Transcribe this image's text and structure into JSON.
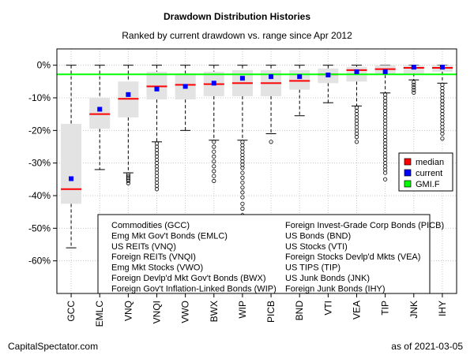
{
  "chart_data": {
    "type": "boxplot",
    "title": "Drawdown Distribution Histories",
    "subtitle": "Ranked by current drawdown vs. range since Apr 2012",
    "ylim": [
      -70,
      5
    ],
    "yticks": [
      0,
      -10,
      -20,
      -30,
      -40,
      -50,
      -60
    ],
    "ytick_labels": [
      "0%",
      "-10%",
      "-20%",
      "-30%",
      "-40%",
      "-50%",
      "-60%"
    ],
    "grid": true,
    "reference_line": {
      "name": "GMI.F",
      "value": -2.8
    },
    "legend": {
      "position": "right",
      "entries": [
        {
          "label": "median",
          "color": "#ff0000"
        },
        {
          "label": "current",
          "color": "#0000ff"
        },
        {
          "label": "GMI.F",
          "color": "#00ff00"
        }
      ]
    },
    "categories": [
      "GCC",
      "EMLC",
      "VNQ",
      "VNQI",
      "VWO",
      "BWX",
      "WIP",
      "PICB",
      "BND",
      "VTI",
      "VEA",
      "TIP",
      "JNK",
      "IHY"
    ],
    "boxes": [
      {
        "q1": -42.5,
        "q3": -18.0,
        "median": -38.0,
        "whisker_low": -56.0,
        "whisker_high": 0.0,
        "current": -34.8,
        "outliers": []
      },
      {
        "q1": -19.5,
        "q3": -10.0,
        "median": -15.0,
        "whisker_low": -32.0,
        "whisker_high": 0.0,
        "current": -13.5,
        "outliers": []
      },
      {
        "q1": -16.0,
        "q3": -5.0,
        "median": -10.3,
        "whisker_low": -33.0,
        "whisker_high": 0.0,
        "current": -9.0,
        "outliers": [
          -33.5,
          -34.0,
          -34.5,
          -35.0,
          -35.5,
          -36.2
        ]
      },
      {
        "q1": -10.5,
        "q3": -2.0,
        "median": -6.5,
        "whisker_low": -23.5,
        "whisker_high": 0.0,
        "current": -7.3,
        "outliers": [
          -24,
          -25,
          -26,
          -27,
          -28,
          -29,
          -30,
          -31,
          -32,
          -33,
          -34,
          -35,
          -36,
          -37,
          -38
        ]
      },
      {
        "q1": -10.5,
        "q3": -2.5,
        "median": -6.0,
        "whisker_low": -20.0,
        "whisker_high": 0.0,
        "current": -6.5,
        "outliers": []
      },
      {
        "q1": -9.5,
        "q3": -2.0,
        "median": -5.8,
        "whisker_low": -23.0,
        "whisker_high": 0.0,
        "current": -5.5,
        "outliers": [
          -23.5,
          -25,
          -26.5,
          -28,
          -29.5,
          -31,
          -32.5,
          -34,
          -35.5
        ]
      },
      {
        "q1": -9.5,
        "q3": -1.5,
        "median": -5.5,
        "whisker_low": -23.0,
        "whisker_high": 0.0,
        "current": -4.0,
        "outliers": [
          -23.5,
          -24.5,
          -25.5,
          -26.5,
          -27.5,
          -28.5,
          -29.5,
          -30.5,
          -31.5,
          -33,
          -34.5,
          -36,
          -37.5,
          -39,
          -40.5,
          -42.5,
          -44,
          -46
        ]
      },
      {
        "q1": -9.5,
        "q3": -1.5,
        "median": -5.5,
        "whisker_low": -21.0,
        "whisker_high": 0.0,
        "current": -3.5,
        "outliers": [
          -23.5
        ]
      },
      {
        "q1": -7.5,
        "q3": -1.5,
        "median": -4.8,
        "whisker_low": -15.5,
        "whisker_high": 0.0,
        "current": -3.5,
        "outliers": []
      },
      {
        "q1": -5.5,
        "q3": -1.0,
        "median": -2.8,
        "whisker_low": -11.5,
        "whisker_high": 0.0,
        "current": -3.0,
        "outliers": []
      },
      {
        "q1": -5.0,
        "q3": -0.5,
        "median": -1.5,
        "whisker_low": -12.5,
        "whisker_high": 0.0,
        "current": -2.0,
        "outliers": [
          -13,
          -14,
          -15,
          -16,
          -17,
          -18,
          -19,
          -20,
          -21,
          -22,
          -23.5
        ]
      },
      {
        "q1": -3.0,
        "q3": 0.0,
        "median": -1.2,
        "whisker_low": -8.5,
        "whisker_high": 0.0,
        "current": -2.0,
        "outliers": [
          -9,
          -10,
          -11,
          -12,
          -13,
          -14,
          -15,
          -16,
          -17,
          -18,
          -19,
          -20,
          -21,
          -22,
          -23,
          -24,
          -25,
          -26,
          -27,
          -28,
          -29,
          -30,
          -31,
          -32,
          -33,
          -35
        ]
      },
      {
        "q1": -2.5,
        "q3": 0.0,
        "median": -0.8,
        "whisker_low": -4.5,
        "whisker_high": 0.0,
        "current": -0.6,
        "outliers": [
          -5.2,
          -6,
          -6.8,
          -7.6,
          -8.4
        ]
      },
      {
        "q1": -2.0,
        "q3": 0.0,
        "median": -0.8,
        "whisker_low": -5.5,
        "whisker_high": 0.0,
        "current": -0.6,
        "outliers": [
          -6,
          -7,
          -8,
          -9,
          -10,
          -11,
          -12,
          -13,
          -14,
          -15,
          -16,
          -17,
          -18,
          -19,
          -20,
          -21,
          -22.5
        ]
      }
    ],
    "key_box": {
      "left_column": [
        "Commodities (GCC)",
        "Emg Mkt Gov't Bonds (EMLC)",
        "US REITs (VNQ)",
        "Foreign REITs (VNQI)",
        "Emg Mkt Stocks (VWO)",
        "Foreign Devlp'd Mkt Gov't Bonds (BWX)",
        "Foreign Gov't Inflation-Linked Bonds (WIP)"
      ],
      "right_column": [
        "Foreign Invest-Grade Corp Bonds (PICB)",
        "US Bonds (BND)",
        "US Stocks (VTI)",
        "Foreign Stocks Devlp'd Mkts (VEA)",
        "US TIPS (TIP)",
        "US Junk Bonds (JNK)",
        "Foreign Junk Bonds (IHY)"
      ]
    }
  },
  "footer": {
    "source": "CapitalSpectator.com",
    "date_label": "as of  2021-03-05"
  }
}
